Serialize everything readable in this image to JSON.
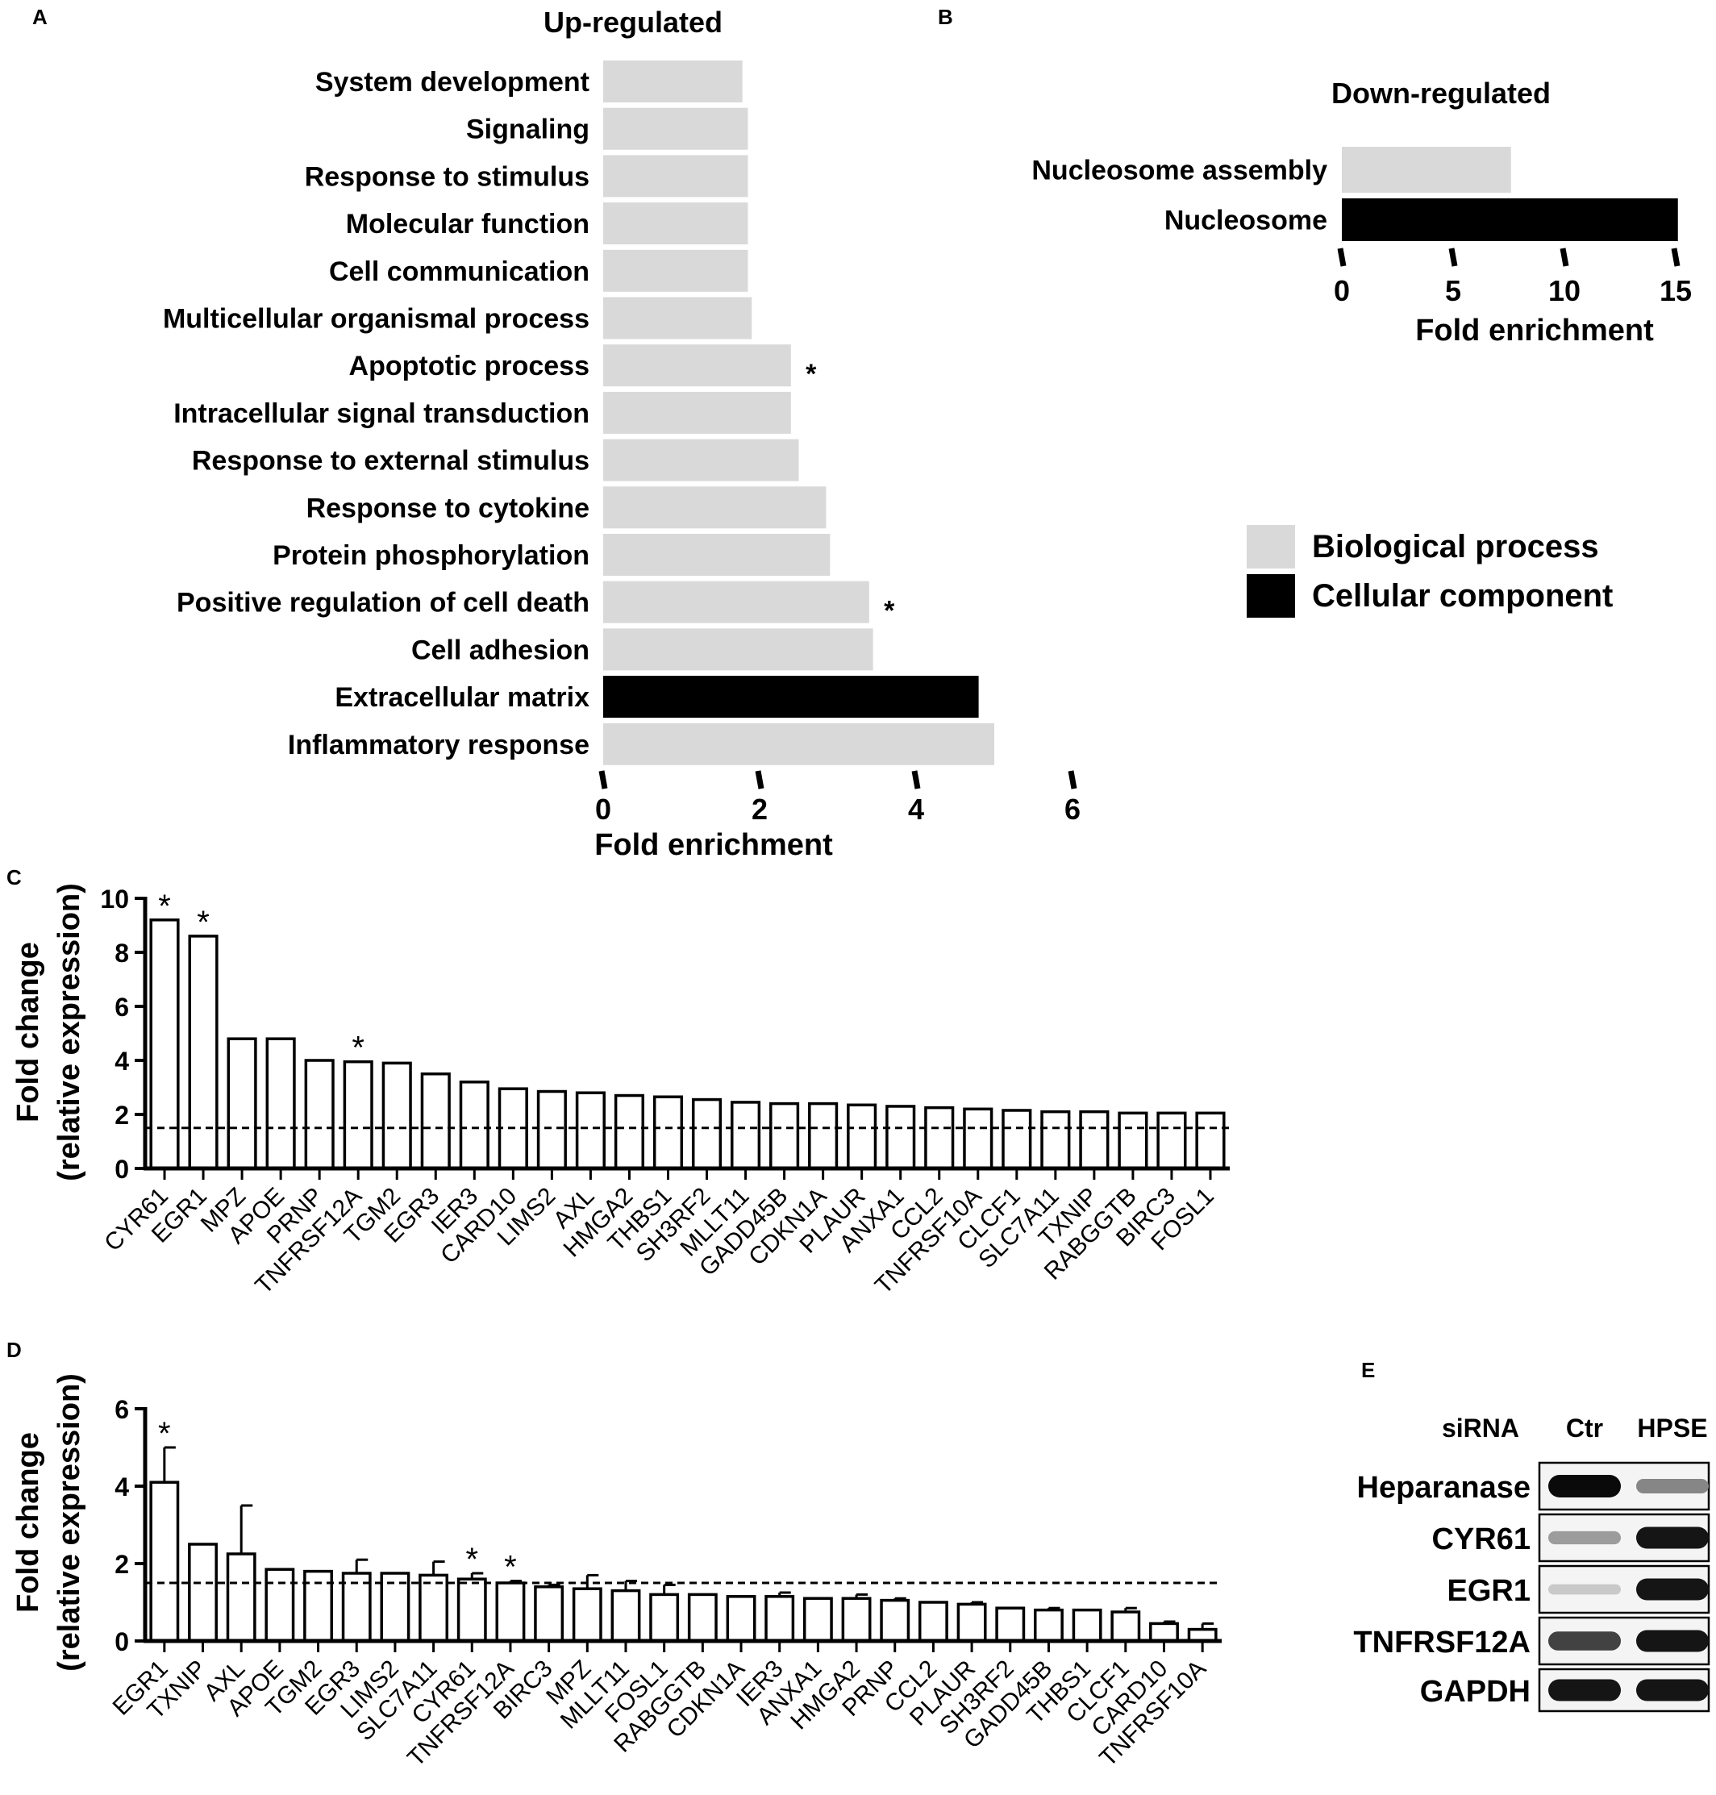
{
  "panel_letters": {
    "a": "A",
    "b": "B",
    "c": "C",
    "d": "D",
    "e": "E"
  },
  "colors": {
    "biological_process": "#d9d9d9",
    "cellular_component": "#000000"
  },
  "legend": {
    "items": [
      {
        "label": "Biological process",
        "color": "#d9d9d9"
      },
      {
        "label": "Cellular component",
        "color": "#000000"
      }
    ]
  },
  "chart_data": [
    {
      "id": "A",
      "type": "bar",
      "orientation": "horizontal",
      "title": "Up-regulated",
      "xlabel": "Fold enrichment",
      "xlim": [
        0,
        6
      ],
      "xticks": [
        0,
        2,
        4,
        6
      ],
      "categories": [
        "System development",
        "Signaling",
        "Response to stimulus",
        "Molecular function",
        "Cell communication",
        "Multicellular organismal process",
        "Apoptotic process",
        "Intracellular signal transduction",
        "Response to external stimulus",
        "Response to cytokine",
        "Protein phosphorylation",
        "Positive regulation of cell death",
        "Cell adhesion",
        "Extracellular matrix",
        "Inflammatory response"
      ],
      "values": [
        1.78,
        1.85,
        1.85,
        1.85,
        1.85,
        1.9,
        2.4,
        2.4,
        2.5,
        2.85,
        2.9,
        3.4,
        3.45,
        4.8,
        5.0
      ],
      "groups": [
        "bp",
        "bp",
        "bp",
        "bp",
        "bp",
        "bp",
        "bp",
        "bp",
        "bp",
        "bp",
        "bp",
        "bp",
        "bp",
        "cc",
        "bp"
      ],
      "significant": [
        false,
        false,
        false,
        false,
        false,
        false,
        true,
        false,
        false,
        false,
        false,
        true,
        false,
        false,
        false
      ]
    },
    {
      "id": "B",
      "type": "bar",
      "orientation": "horizontal",
      "title": "Down-regulated",
      "xlabel": "Fold enrichment",
      "xlim": [
        0,
        15
      ],
      "xticks": [
        0,
        5,
        10,
        15
      ],
      "categories": [
        "Nucleosome assembly",
        "Nucleosome"
      ],
      "values": [
        7.6,
        15.1
      ],
      "groups": [
        "bp",
        "cc"
      ]
    },
    {
      "id": "C",
      "type": "bar",
      "ylabel": [
        "Fold change",
        "(relative expression)"
      ],
      "ylim": [
        0,
        10
      ],
      "yticks": [
        0,
        2,
        4,
        6,
        8,
        10
      ],
      "threshold": 1.5,
      "categories": [
        "CYR61",
        "EGR1",
        "MPZ",
        "APOE",
        "PRNP",
        "TNFRSF12A",
        "TGM2",
        "EGR3",
        "IER3",
        "CARD10",
        "LIMS2",
        "AXL",
        "HMGA2",
        "THBS1",
        "SH3RF2",
        "MLLT11",
        "GADD45B",
        "CDKN1A",
        "PLAUR",
        "ANXA1",
        "CCL2",
        "TNFRSF10A",
        "CLCF1",
        "SLC7A11",
        "TXNIP",
        "RABGGTB",
        "BIRC3",
        "FOSL1"
      ],
      "values": [
        9.2,
        8.6,
        4.8,
        4.8,
        4.0,
        3.95,
        3.9,
        3.5,
        3.2,
        2.95,
        2.85,
        2.8,
        2.7,
        2.65,
        2.55,
        2.45,
        2.4,
        2.4,
        2.35,
        2.3,
        2.25,
        2.2,
        2.15,
        2.1,
        2.1,
        2.05,
        2.05,
        2.05
      ],
      "significant": [
        true,
        true,
        false,
        false,
        false,
        true,
        false,
        false,
        false,
        false,
        false,
        false,
        false,
        false,
        false,
        false,
        false,
        false,
        false,
        false,
        false,
        false,
        false,
        false,
        false,
        false,
        false,
        false
      ]
    },
    {
      "id": "D",
      "type": "bar",
      "ylabel": [
        "Fold change",
        "(relative expression)"
      ],
      "ylim": [
        0,
        6
      ],
      "yticks": [
        0,
        2,
        4,
        6
      ],
      "threshold": 1.5,
      "categories": [
        "EGR1",
        "TXNIP",
        "AXL",
        "APOE",
        "TGM2",
        "EGR3",
        "LIMS2",
        "SLC7A11",
        "CYR61",
        "TNFRSF12A",
        "BIRC3",
        "MPZ",
        "MLLT11",
        "FOSL1",
        "RABGGTB",
        "CDKN1A",
        "IER3",
        "ANXA1",
        "HMGA2",
        "PRNP",
        "CCL2",
        "PLAUR",
        "SH3RF2",
        "GADD45B",
        "THBS1",
        "CLCF1",
        "CARD10",
        "TNFRSF10A"
      ],
      "values": [
        4.1,
        2.5,
        2.25,
        1.85,
        1.8,
        1.75,
        1.75,
        1.7,
        1.6,
        1.5,
        1.4,
        1.35,
        1.3,
        1.2,
        1.2,
        1.15,
        1.15,
        1.1,
        1.1,
        1.05,
        1.0,
        0.95,
        0.85,
        0.8,
        0.8,
        0.75,
        0.45,
        0.3
      ],
      "errors": [
        0.9,
        0,
        1.25,
        0,
        0,
        0.35,
        0,
        0.35,
        0.15,
        0.05,
        0.05,
        0.35,
        0.25,
        0.25,
        0,
        0,
        0.1,
        0,
        0.1,
        0.05,
        0,
        0.05,
        0,
        0.05,
        0,
        0.1,
        0.05,
        0.15
      ],
      "significant": [
        true,
        false,
        false,
        false,
        false,
        false,
        false,
        false,
        true,
        true,
        false,
        false,
        false,
        false,
        false,
        false,
        false,
        false,
        false,
        false,
        false,
        false,
        false,
        false,
        false,
        false,
        false,
        false
      ]
    }
  ],
  "blot": {
    "header_label": "siRNA",
    "lanes": [
      "Ctr",
      "HPSE"
    ],
    "rows": [
      {
        "label": "Heparanase",
        "intensity": [
          1.0,
          0.45
        ]
      },
      {
        "label": "CYR61",
        "intensity": [
          0.35,
          0.95
        ]
      },
      {
        "label": "EGR1",
        "intensity": [
          0.15,
          0.95
        ]
      },
      {
        "label": "TNFRSF12A",
        "intensity": [
          0.75,
          0.95
        ]
      },
      {
        "label": "GAPDH",
        "intensity": [
          0.95,
          0.95
        ]
      }
    ]
  }
}
